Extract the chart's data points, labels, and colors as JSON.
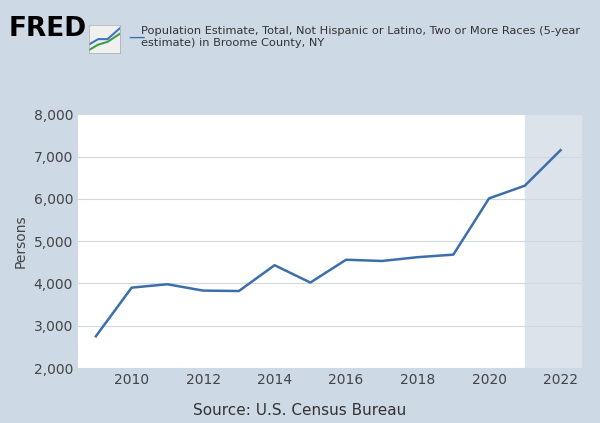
{
  "years": [
    2009,
    2010,
    2011,
    2012,
    2013,
    2014,
    2015,
    2016,
    2017,
    2018,
    2019,
    2020,
    2021,
    2022
  ],
  "values": [
    2750,
    3900,
    3980,
    3830,
    3820,
    4430,
    4020,
    4560,
    4530,
    4620,
    4680,
    6010,
    6310,
    7150
  ],
  "line_color": "#3c6faa",
  "background_outer": "#cdd9e5",
  "background_inner": "#ffffff",
  "shade_start": 2021.0,
  "shade_end": 2022.6,
  "shade_color": "#dce3ea",
  "ylabel": "Persons",
  "source_label": "Source: U.S. Census Bureau",
  "legend_line": "Population Estimate, Total, Not Hispanic or Latino, Two or More Races (5-year\nestimate) in Broome County, NY",
  "ylim": [
    2000,
    8000
  ],
  "xlim": [
    2008.5,
    2022.6
  ],
  "yticks": [
    2000,
    3000,
    4000,
    5000,
    6000,
    7000,
    8000
  ],
  "xticks": [
    2010,
    2012,
    2014,
    2016,
    2018,
    2020,
    2022
  ],
  "fred_text": "FRED",
  "grid_color": "#d0d8e0"
}
